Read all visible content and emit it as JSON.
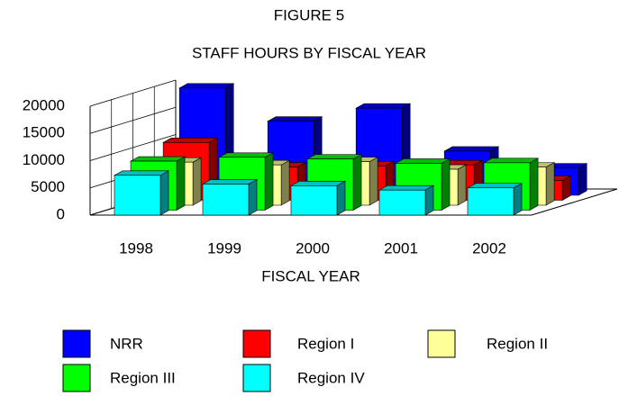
{
  "chart_data": {
    "type": "bar3d",
    "title": "FIGURE 5",
    "subtitle": "STAFF HOURS BY FISCAL YEAR",
    "x_label": "FISCAL YEAR",
    "categories": [
      "1998",
      "1999",
      "2000",
      "2001",
      "2002"
    ],
    "series": [
      {
        "name": "NRR",
        "color": "#0000ff",
        "values": [
          19700,
          13600,
          16000,
          8100,
          5000
        ]
      },
      {
        "name": "Region I",
        "color": "#ff0000",
        "values": [
          10600,
          6100,
          6300,
          6500,
          3600
        ]
      },
      {
        "name": "Region II",
        "color": "#ffff99",
        "values": [
          7900,
          7400,
          8000,
          6600,
          7000
        ]
      },
      {
        "name": "Region III",
        "color": "#00ff00",
        "values": [
          9000,
          9700,
          9400,
          8600,
          8700
        ]
      },
      {
        "name": "Region IV",
        "color": "#00ffff",
        "values": [
          7300,
          5700,
          5400,
          4600,
          5000
        ]
      }
    ],
    "ylim": [
      0,
      20000
    ],
    "yticks": [
      0,
      5000,
      10000,
      15000,
      20000
    ],
    "grid": true
  }
}
